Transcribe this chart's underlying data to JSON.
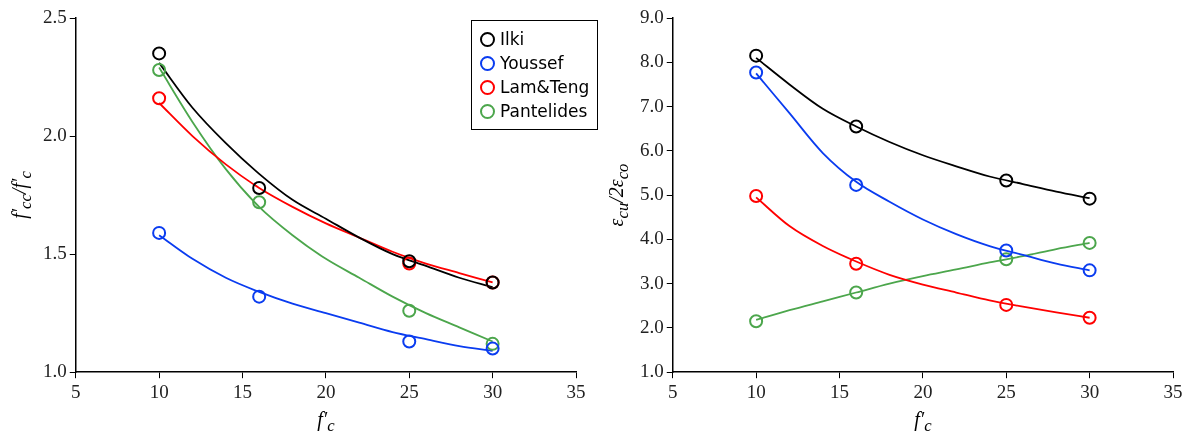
{
  "chart_data": [
    {
      "type": "scatter",
      "xlabel": "f′$_{c}$",
      "ylabel": "f′$_{cc}$/f′$_{c}$",
      "xlim": [
        5,
        35
      ],
      "xticks": [
        5,
        10,
        15,
        20,
        25,
        30,
        35
      ],
      "ylim": [
        1,
        2.5
      ],
      "yticks": [
        {
          "value": 1,
          "label": "1.0"
        },
        1.5,
        {
          "value": 2,
          "label": "2.0"
        },
        2.5
      ],
      "grid": false,
      "legend": "top right",
      "marker": "circle",
      "x": [
        10,
        16,
        25,
        30
      ],
      "series": [
        {
          "name": "Ilki",
          "color": "#000000",
          "values": [
            2.35,
            1.78,
            1.47,
            1.38
          ]
        },
        {
          "name": "Youssef",
          "color": "#0a3cf0",
          "values": [
            1.59,
            1.32,
            1.13,
            1.1
          ]
        },
        {
          "name": "Lam&Teng",
          "color": "#ff0000",
          "values": [
            2.16,
            null,
            1.46,
            1.38
          ]
        },
        {
          "name": "Pantelides",
          "color": "#4ca64c",
          "values": [
            2.28,
            1.72,
            1.26,
            1.12
          ]
        },
        {
          "type": "line",
          "marker": "none",
          "color": "#000000",
          "x": [
            10,
            12,
            14,
            16,
            18,
            20,
            22,
            24,
            26,
            28,
            30
          ],
          "values": [
            2.31,
            2.12,
            1.97,
            1.84,
            1.73,
            1.65,
            1.57,
            1.5,
            1.45,
            1.4,
            1.36
          ]
        },
        {
          "type": "line",
          "marker": "none",
          "color": "#0a3cf0",
          "x": [
            10,
            12,
            14,
            16,
            18,
            20,
            22,
            24,
            26,
            28,
            30
          ],
          "values": [
            1.58,
            1.48,
            1.4,
            1.34,
            1.29,
            1.25,
            1.21,
            1.17,
            1.14,
            1.11,
            1.09
          ]
        },
        {
          "type": "line",
          "marker": "none",
          "color": "#ff0000",
          "x": [
            10,
            12,
            14,
            16,
            18,
            20,
            22,
            24,
            26,
            28,
            30
          ],
          "values": [
            2.14,
            2,
            1.88,
            1.78,
            1.7,
            1.63,
            1.57,
            1.51,
            1.46,
            1.42,
            1.38
          ]
        },
        {
          "type": "line",
          "marker": "none",
          "color": "#4ca64c",
          "x": [
            10,
            12,
            14,
            16,
            18,
            20,
            22,
            24,
            26,
            28,
            30
          ],
          "values": [
            2.29,
            2.06,
            1.86,
            1.7,
            1.58,
            1.48,
            1.4,
            1.32,
            1.25,
            1.19,
            1.13
          ]
        }
      ]
    },
    {
      "type": "scatter",
      "xlabel": "f′$_{c}$",
      "ylabel": "ε$_{cu}$/2ε$_{co}$",
      "xlim": [
        5,
        35
      ],
      "xticks": [
        5,
        10,
        15,
        20,
        25,
        30,
        35
      ],
      "ylim": [
        1,
        9
      ],
      "yticks": [
        {
          "value": 1,
          "label": "1.0"
        },
        {
          "value": 2,
          "label": "2.0"
        },
        {
          "value": 3,
          "label": "3.0"
        },
        {
          "value": 4,
          "label": "4.0"
        },
        {
          "value": 5,
          "label": "5.0"
        },
        {
          "value": 6,
          "label": "6.0"
        },
        {
          "value": 7,
          "label": "7.0"
        },
        {
          "value": 8,
          "label": "8.0"
        },
        {
          "value": 9,
          "label": "9.0"
        }
      ],
      "grid": false,
      "marker": "circle",
      "x": [
        10,
        16,
        25,
        30
      ],
      "series": [
        {
          "color": "#000000",
          "values": [
            8.15,
            6.55,
            5.33,
            4.92
          ]
        },
        {
          "color": "#0a3cf0",
          "values": [
            7.77,
            5.23,
            3.75,
            3.3
          ]
        },
        {
          "color": "#ff0000",
          "values": [
            4.98,
            3.45,
            2.52,
            2.23
          ]
        },
        {
          "color": "#4ca64c",
          "values": [
            2.15,
            2.8,
            3.55,
            3.92
          ]
        },
        {
          "type": "line",
          "marker": "none",
          "color": "#000000",
          "x": [
            10,
            12,
            14,
            16,
            18,
            20,
            22,
            24,
            26,
            28,
            30
          ],
          "values": [
            8.1,
            7.5,
            6.95,
            6.55,
            6.2,
            5.9,
            5.65,
            5.42,
            5.25,
            5.08,
            4.93
          ]
        },
        {
          "type": "line",
          "marker": "none",
          "color": "#0a3cf0",
          "x": [
            10,
            12,
            14,
            16,
            18,
            20,
            22,
            24,
            26,
            28,
            30
          ],
          "values": [
            7.75,
            6.85,
            5.95,
            5.3,
            4.85,
            4.45,
            4.12,
            3.85,
            3.65,
            3.45,
            3.3
          ]
        },
        {
          "type": "line",
          "marker": "none",
          "color": "#ff0000",
          "x": [
            10,
            12,
            14,
            16,
            18,
            20,
            22,
            24,
            26,
            28,
            30
          ],
          "values": [
            4.95,
            4.3,
            3.85,
            3.5,
            3.2,
            2.98,
            2.8,
            2.62,
            2.48,
            2.35,
            2.23
          ]
        },
        {
          "type": "line",
          "marker": "none",
          "color": "#4ca64c",
          "x": [
            10,
            12,
            14,
            16,
            18,
            20,
            22,
            24,
            26,
            28,
            30
          ],
          "values": [
            2.18,
            2.4,
            2.6,
            2.8,
            3,
            3.17,
            3.32,
            3.48,
            3.62,
            3.78,
            3.92
          ]
        }
      ]
    }
  ]
}
